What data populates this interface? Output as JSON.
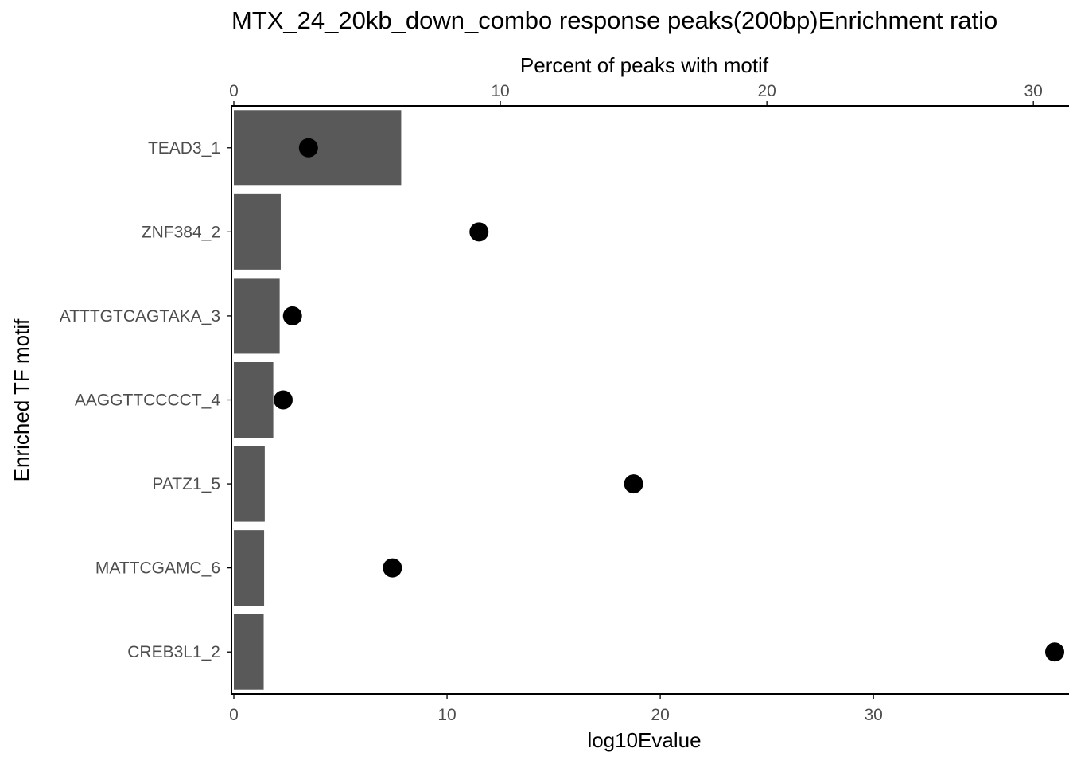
{
  "chart_data": {
    "type": "bar",
    "title": "MTX_24_20kb_down_combo response peaks(200bp)Enrichment ratio",
    "xlabel": "log10Evalue",
    "x2label": "Percent of peaks with motif",
    "ylabel": "Enriched TF motif",
    "categories": [
      "TEAD3_1",
      "ZNF384_2",
      "ATTTGTCAGTAKA_3",
      "AAGGTTCCCCT_4",
      "PATZ1_5",
      "MATTCGAMC_6",
      "CREB3L1_2"
    ],
    "series": [
      {
        "axis": "bottom",
        "mark": "bar",
        "values": [
          7.85,
          2.2,
          2.15,
          1.85,
          1.45,
          1.42,
          1.4
        ]
      },
      {
        "axis": "top",
        "mark": "point",
        "values": [
          2.8,
          9.2,
          2.2,
          1.85,
          15.0,
          5.95,
          30.8
        ]
      }
    ],
    "xlim": [
      0,
      38.5
    ],
    "x2lim": [
      0,
      30.8
    ],
    "xticks": [
      0,
      10,
      20,
      30
    ],
    "x2ticks": [
      0,
      10,
      20,
      30
    ],
    "grid": false,
    "legend": "none",
    "colors": {
      "bar": "#595959",
      "point": "#000000",
      "axis": "#000000",
      "tick_label": "#4d4d4d"
    }
  }
}
